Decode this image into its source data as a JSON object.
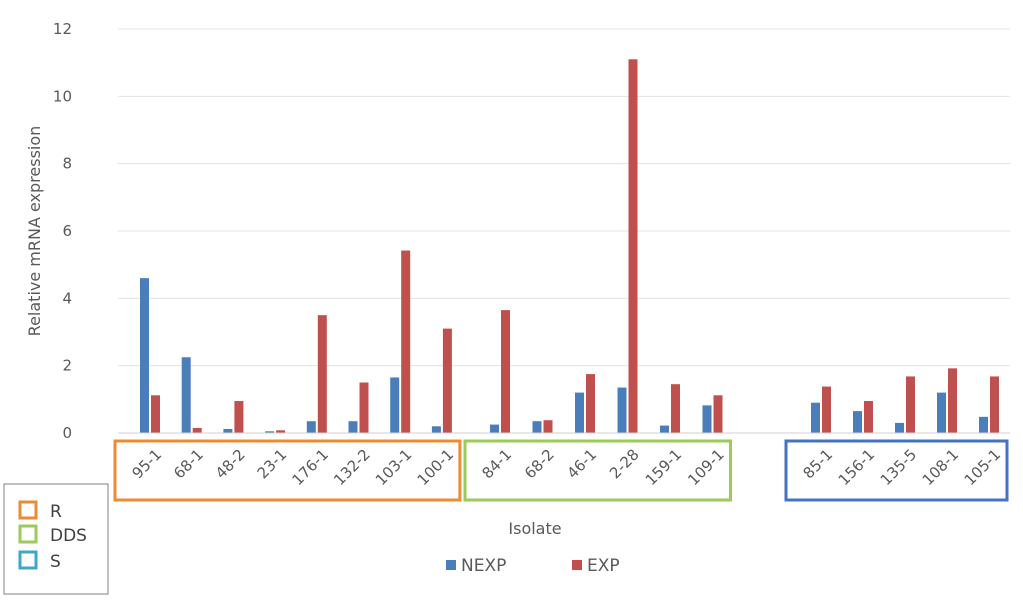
{
  "chart_data": {
    "type": "bar",
    "title": "",
    "xlabel": "Isolate",
    "ylabel": "Relative mRNA expression",
    "ylim": [
      0,
      12
    ],
    "yticks": [
      0,
      2,
      4,
      6,
      8,
      10,
      12
    ],
    "grid": true,
    "categories": [
      "95-1",
      "68-1",
      "48-2",
      "23-1",
      "176-1",
      "132-2",
      "103-1",
      "100-1",
      "84-1",
      "68-2",
      "46-1",
      "2-28",
      "159-1",
      "109-1",
      "85-1",
      "156-1",
      "135-5",
      "108-1",
      "105-1"
    ],
    "series": [
      {
        "name": "NEXP",
        "color": "#4A7EBB",
        "values": [
          4.6,
          2.25,
          0.12,
          0.05,
          0.35,
          0.35,
          1.65,
          0.2,
          0.25,
          0.35,
          1.2,
          1.35,
          0.22,
          0.82,
          0.9,
          0.65,
          0.3,
          1.2,
          0.48
        ]
      },
      {
        "name": "EXP",
        "color": "#C0504D",
        "values": [
          1.12,
          0.15,
          0.95,
          0.08,
          3.5,
          1.5,
          5.42,
          3.1,
          3.65,
          0.38,
          1.75,
          11.1,
          1.45,
          1.12,
          1.38,
          0.95,
          1.68,
          1.92,
          1.68
        ]
      }
    ],
    "groups": [
      {
        "name": "R",
        "color": "#ED8B33",
        "start": 0,
        "end": 7
      },
      {
        "name": "DDS",
        "color": "#9BCB59",
        "start": 8,
        "end": 13
      },
      {
        "name": "S",
        "color": "#4472C4",
        "start": 14,
        "end": 18
      }
    ],
    "series_legend_position": "bottom",
    "group_legend": {
      "position": "bottom-left",
      "items": [
        {
          "label": "R",
          "color": "#ED8B33"
        },
        {
          "label": "DDS",
          "color": "#9BCB59"
        },
        {
          "label": "S",
          "color": "#3FA8C9"
        }
      ]
    }
  }
}
